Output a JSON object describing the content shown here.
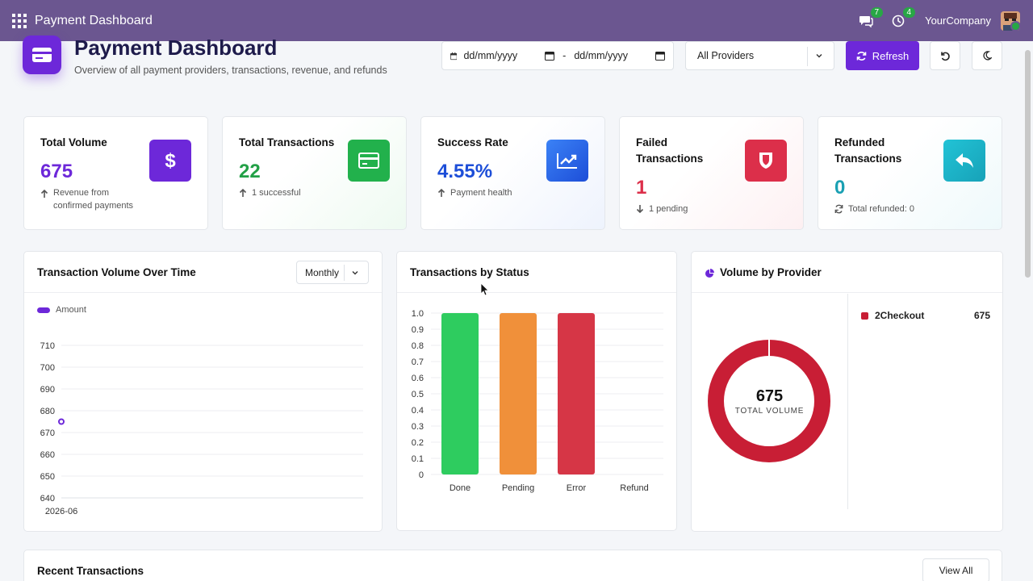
{
  "navbar": {
    "app_title": "Payment Dashboard",
    "messages_count": "7",
    "activities_count": "4",
    "company": "YourCompany"
  },
  "header": {
    "title": "Payment Dashboard",
    "subtitle": "Overview of all payment providers, transactions, revenue, and refunds"
  },
  "filters": {
    "date_from_placeholder": "dd/mm/yyyy",
    "date_separator": "-",
    "date_to_placeholder": "dd/mm/yyyy",
    "provider_selected": "All Providers",
    "refresh_label": "Refresh"
  },
  "kpis": [
    {
      "label": "Total Volume",
      "value": "675",
      "note": "Revenue from confirmed payments",
      "color": "#6d28d9"
    },
    {
      "label": "Total Transactions",
      "value": "22",
      "note": "1 successful",
      "color": "#22a046"
    },
    {
      "label": "Success Rate",
      "value": "4.55%",
      "note": "Payment health",
      "color": "#1d4ed8"
    },
    {
      "label": "Failed Transactions",
      "value": "1",
      "note": "1 pending",
      "color": "#dc2f4a"
    },
    {
      "label": "Refunded Transactions",
      "value": "0",
      "note": "Total refunded: 0",
      "color": "#17a2b8"
    }
  ],
  "volume_panel": {
    "title": "Transaction Volume Over Time",
    "period": "Monthly"
  },
  "status_panel": {
    "title": "Transactions by Status"
  },
  "provider_panel": {
    "title": "Volume by Provider",
    "center_value": "675",
    "center_label": "TOTAL VOLUME",
    "legend": [
      {
        "name": "2Checkout",
        "value": "675",
        "color": "#c81e35"
      }
    ]
  },
  "recent": {
    "title": "Recent Transactions",
    "view_all": "View All"
  },
  "chart_data": [
    {
      "type": "line",
      "legend": [
        "Amount"
      ],
      "x": [
        "2026-06"
      ],
      "series": [
        {
          "name": "Amount",
          "values": [
            675
          ],
          "color": "#6d28d9"
        }
      ],
      "yticks": [
        640,
        650,
        660,
        670,
        680,
        690,
        700,
        710
      ],
      "ylim": [
        640,
        710
      ],
      "grid": true
    },
    {
      "type": "bar",
      "categories": [
        "Done",
        "Pending",
        "Error",
        "Refund"
      ],
      "values": [
        1,
        1,
        1,
        0
      ],
      "colors": [
        "#2ecc5f",
        "#f0903a",
        "#d63646",
        "#999999"
      ],
      "yticks": [
        "0",
        "0.1",
        "0.2",
        "0.3",
        "0.4",
        "0.5",
        "0.6",
        "0.7",
        "0.8",
        "0.9",
        "1.0"
      ],
      "ylim": [
        0,
        1
      ],
      "grid": true
    },
    {
      "type": "pie",
      "categories": [
        "2Checkout"
      ],
      "values": [
        675
      ],
      "colors": [
        "#c81e35"
      ]
    }
  ]
}
